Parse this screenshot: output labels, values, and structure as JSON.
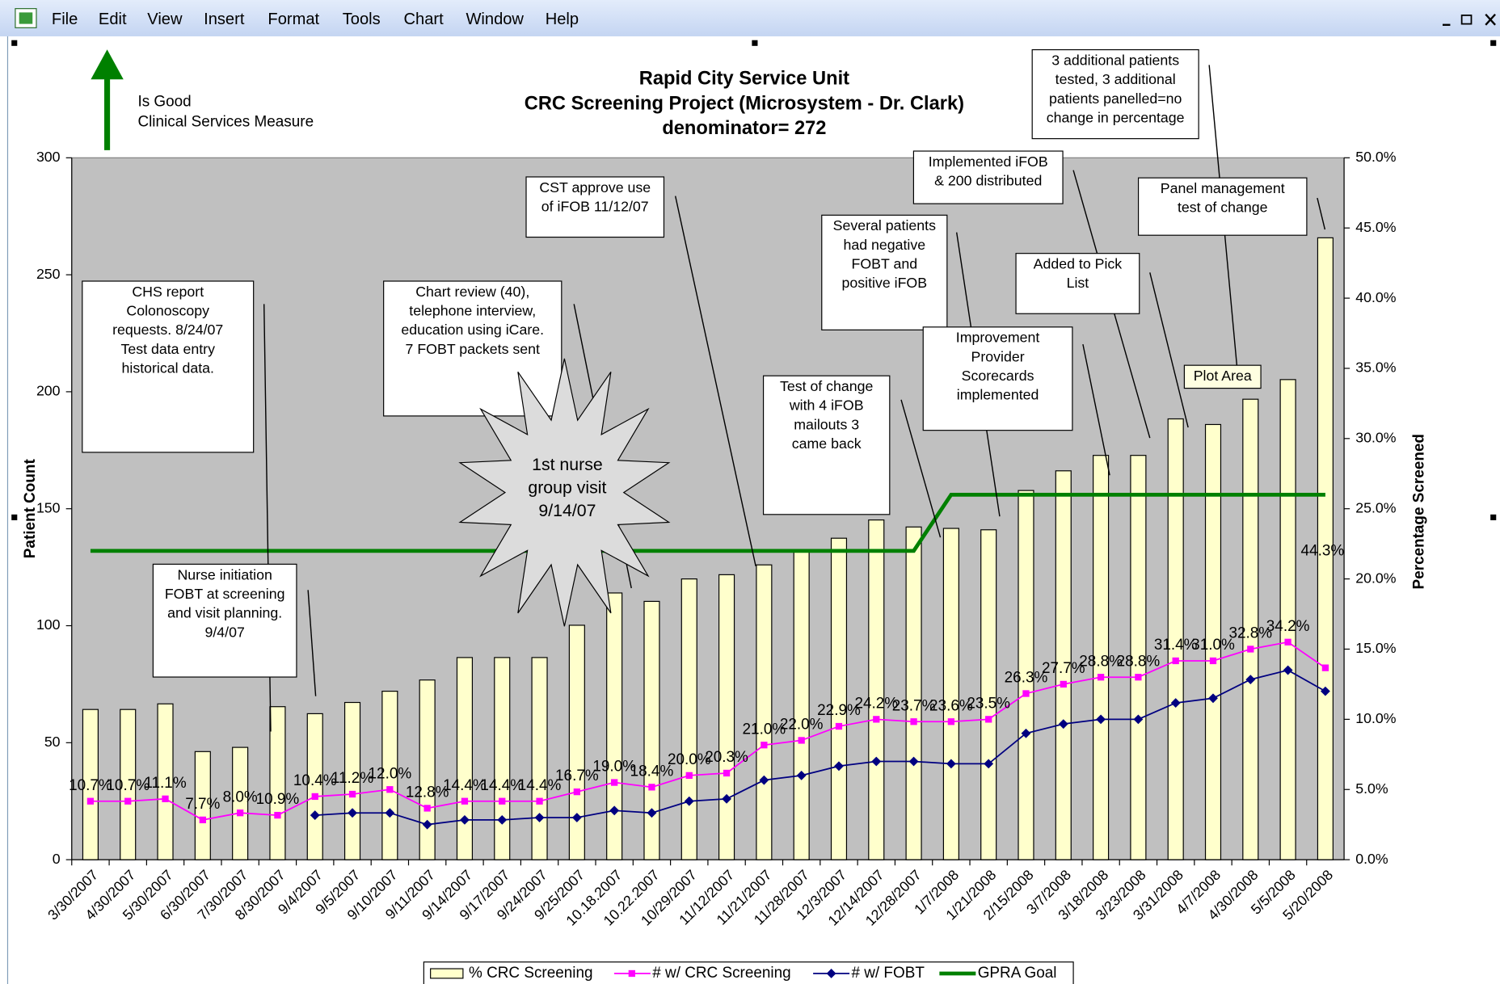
{
  "menu": [
    "File",
    "Edit",
    "View",
    "Insert",
    "Format",
    "Tools",
    "Chart",
    "Window",
    "Help"
  ],
  "chart_data": {
    "type": "bar",
    "title": [
      "Rapid City Service Unit",
      "CRC Screening Project (Microsystem - Dr. Clark)",
      "denominator= 272"
    ],
    "header_note": [
      "Is Good",
      "Clinical Services Measure"
    ],
    "ylabel": "Patient Count",
    "y2label": "Percentage Screened",
    "categories": [
      "3/30/2007",
      "4/30/2007",
      "5/30/2007",
      "6/30/2007",
      "7/30/2007",
      "8/30/2007",
      "9/4/2007",
      "9/5/2007",
      "9/10/2007",
      "9/11/2007",
      "9/14/2007",
      "9/17/2007",
      "9/24/2007",
      "9/25/2007",
      "10.18.2007",
      "10.22.2007",
      "10/29/2007",
      "11/12/2007",
      "11/21/2007",
      "11/28/2007",
      "12/3/2007",
      "12/14/2007",
      "12/28/2007",
      "1/7/2008",
      "1/21/2008",
      "2/15/2008",
      "3/7/2008",
      "3/18/2008",
      "3/23/2008",
      "3/31/2008",
      "4/7/2008",
      "4/30/2008",
      "5/5/2008",
      "5/20/2008"
    ],
    "series": [
      {
        "name": "% CRC Screening",
        "type": "bar",
        "axis": "y2",
        "color": "#ffffcc",
        "values": [
          10.7,
          10.7,
          11.1,
          7.7,
          8.0,
          10.9,
          10.4,
          11.2,
          12.0,
          12.8,
          14.4,
          14.4,
          14.4,
          16.7,
          19.0,
          18.4,
          20.0,
          20.3,
          21.0,
          22.0,
          22.9,
          24.2,
          23.7,
          23.6,
          23.5,
          26.3,
          27.7,
          28.8,
          28.8,
          31.4,
          31.0,
          32.8,
          34.2,
          44.3
        ],
        "value_labels": [
          "10.7%",
          "10.7%",
          "11.1%",
          "7.7%",
          "8.0%",
          "10.9%",
          "10.4%",
          "11.2%",
          "12.0%",
          "12.8%",
          "14.4%",
          "14.4%",
          "14.4%",
          "16.7%",
          "19.0%",
          "18.4%",
          "20.0%",
          "20.3%",
          "21.0%",
          "22.0%",
          "22.9%",
          "24.2%",
          "23.7%",
          "23.6%",
          "23.5%",
          "26.3%",
          "27.7%",
          "28.8%",
          "28.8%",
          "31.4%",
          "31.0%",
          "32.8%",
          "34.2%",
          "44.3%"
        ]
      },
      {
        "name": "# w/ CRC Screening",
        "type": "line",
        "color": "#ff00ff",
        "values": [
          25,
          25,
          26,
          17,
          20,
          19,
          27,
          28,
          30,
          22,
          25,
          25,
          25,
          29,
          33,
          31,
          36,
          37,
          49,
          51,
          57,
          60,
          59,
          59,
          60,
          71,
          75,
          78,
          78,
          85,
          85,
          90,
          93,
          82
        ]
      },
      {
        "name": "# w/ FOBT",
        "type": "line",
        "color": "#000080",
        "values": [
          null,
          null,
          null,
          null,
          null,
          null,
          19,
          20,
          20,
          15,
          17,
          17,
          18,
          18,
          21,
          20,
          25,
          26,
          34,
          36,
          40,
          42,
          42,
          41,
          41,
          54,
          58,
          60,
          60,
          67,
          69,
          77,
          81,
          72
        ]
      },
      {
        "name": "GPRA Goal",
        "type": "line",
        "axis": "y2",
        "color": "#008000",
        "values": [
          22,
          22,
          22,
          22,
          22,
          22,
          22,
          22,
          22,
          22,
          22,
          22,
          22,
          22,
          22,
          22,
          22,
          22,
          22,
          22,
          22,
          22,
          22,
          26,
          26,
          26,
          26,
          26,
          26,
          26,
          26,
          26,
          26,
          26
        ]
      }
    ],
    "ylim": [
      0,
      300
    ],
    "yticks": [
      0,
      50,
      100,
      150,
      200,
      250,
      300
    ],
    "y2lim": [
      0,
      50
    ],
    "y2ticks": [
      {
        "value": 0,
        "label": "0.0%"
      },
      {
        "value": 5,
        "label": "5.0%"
      },
      {
        "value": 10,
        "label": "10.0%"
      },
      {
        "value": 15,
        "label": "15.0%"
      },
      {
        "value": 20,
        "label": "20.0%"
      },
      {
        "value": 25,
        "label": "25.0%"
      },
      {
        "value": 30,
        "label": "30.0%"
      },
      {
        "value": 35,
        "label": "35.0%"
      },
      {
        "value": 40,
        "label": "40.0%"
      },
      {
        "value": 45,
        "label": "45.0%"
      },
      {
        "value": 50,
        "label": "50.0%"
      }
    ],
    "legend": "bottom",
    "annotations": [
      {
        "lines": [
          "CHS report",
          "Colonoscopy",
          "requests.  8/24/07",
          "Test data entry",
          "historical data."
        ]
      },
      {
        "lines": [
          "Nurse initiation",
          "FOBT at screening",
          "and visit planning.",
          "9/4/07"
        ]
      },
      {
        "lines": [
          "Chart review (40),",
          "telephone interview,",
          "education using iCare.",
          "7 FOBT packets sent"
        ]
      },
      {
        "lines": [
          "1st nurse",
          "group visit",
          "9/14/07"
        ]
      },
      {
        "lines": [
          "CST approve use",
          "of  iFOB 11/12/07"
        ]
      },
      {
        "lines": [
          "Test of change",
          "with 4 iFOB",
          "mailouts 3",
          "came back"
        ]
      },
      {
        "lines": [
          "Several patients",
          "had negative",
          "FOBT and",
          "positive iFOB"
        ]
      },
      {
        "lines": [
          "Implemented iFOB",
          "& 200 distributed"
        ]
      },
      {
        "lines": [
          "Improvement",
          "Provider",
          "Scorecards",
          "implemented"
        ]
      },
      {
        "lines": [
          "Added to Pick",
          "List"
        ]
      },
      {
        "lines": [
          "3 additional patients",
          "tested, 3 additional",
          "patients panelled=no",
          "change in percentage"
        ]
      },
      {
        "lines": [
          "Panel management",
          "test of change"
        ]
      },
      {
        "lines": [
          "Plot Area"
        ]
      }
    ]
  }
}
